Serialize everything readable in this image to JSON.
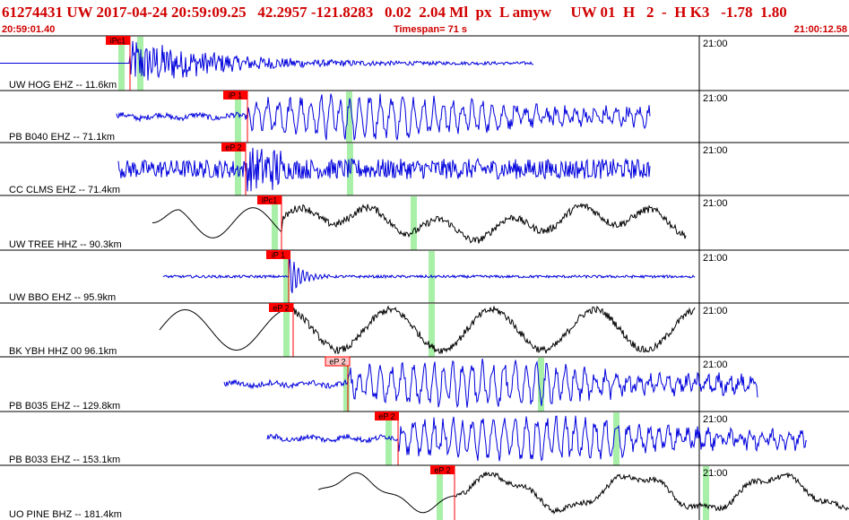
{
  "header": {
    "title": "61274431 UW 2017-04-24 20:59:09.25   42.2957 -121.8283   0.02  2.04 Ml  px  L amyw     UW 01  H   2  -  H K3   -1.78  1.80",
    "start_time": "20:59:01.40",
    "timespan": "Timespan=  71 s",
    "end_time": "21:00:12.58"
  },
  "colors": {
    "header_text": "#d00000",
    "trace_blue": "#0000dd",
    "trace_black": "#000000",
    "pick_red": "#ff0000",
    "pick_pink": "#ffc8c8",
    "green_marker": "#a8f0a8"
  },
  "traces": [
    {
      "label": "UW HOG EHZ -- 11.6km",
      "minute": "21:00",
      "pick": "iPc1",
      "color": "blue",
      "pick_style": "red"
    },
    {
      "label": "PB B040 EHZ -- 71.1km",
      "minute": "21:00",
      "pick": "iP 1",
      "color": "blue",
      "pick_style": "red"
    },
    {
      "label": "CC CLMS EHZ -- 71.4km",
      "minute": "21:00",
      "pick": "eP 2",
      "color": "blue",
      "pick_style": "red"
    },
    {
      "label": "UW TREE HHZ -- 90.3km",
      "minute": "21:00",
      "pick": "iPc1",
      "color": "black",
      "pick_style": "red"
    },
    {
      "label": "UW BBO EHZ -- 95.9km",
      "minute": "21:00",
      "pick": "iP 1",
      "color": "blue",
      "pick_style": "red"
    },
    {
      "label": "BK YBH HHZ 00 96.1km",
      "minute": "21:00",
      "pick": "eP 2",
      "color": "black",
      "pick_style": "red"
    },
    {
      "label": "PB B035 EHZ -- 129.8km",
      "minute": "21:00",
      "pick": "eP 2",
      "color": "blue",
      "pick_style": "pink"
    },
    {
      "label": "PB B033 EHZ -- 153.1km",
      "minute": "21:00",
      "pick": "eP 2",
      "color": "blue",
      "pick_style": "red"
    },
    {
      "label": "UO PINE BHZ -- 181.4km",
      "minute": "21:00",
      "pick": "eP 2",
      "color": "black",
      "pick_style": "red"
    }
  ]
}
